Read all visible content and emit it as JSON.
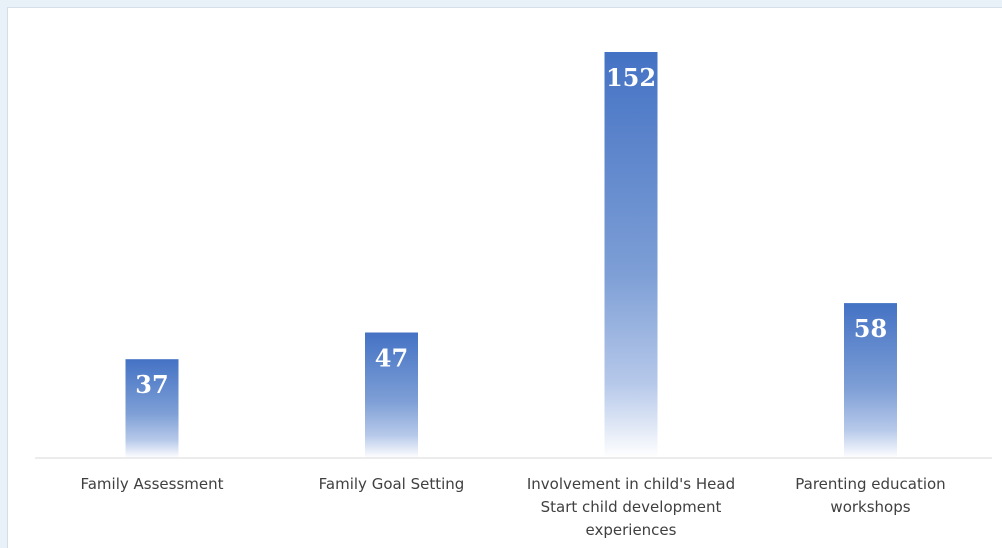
{
  "chart_data": {
    "type": "bar",
    "categories": [
      "Family Assessment",
      "Family Goal Setting",
      "Involvement in child's Head Start child development experiences",
      "Parenting education workshops"
    ],
    "category_lines": [
      [
        "Family Assessment"
      ],
      [
        "Family Goal Setting"
      ],
      [
        "Involvement in child's Head",
        "Start child development",
        "experiences"
      ],
      [
        "Parenting education",
        "workshops"
      ]
    ],
    "values": [
      37,
      47,
      152,
      58
    ],
    "value_labels": [
      "37",
      "47",
      "152",
      "58"
    ],
    "title": "",
    "xlabel": "",
    "ylabel": "",
    "ylim": [
      0,
      152
    ],
    "grid": false,
    "legend": "none",
    "colors": {
      "bar_top": "#4472c4",
      "bar_fade": "#ffffff",
      "axis": "#d9d9d9",
      "label_text": "#404040",
      "value_text": "#ffffff",
      "background": "#e8f1f8"
    }
  }
}
